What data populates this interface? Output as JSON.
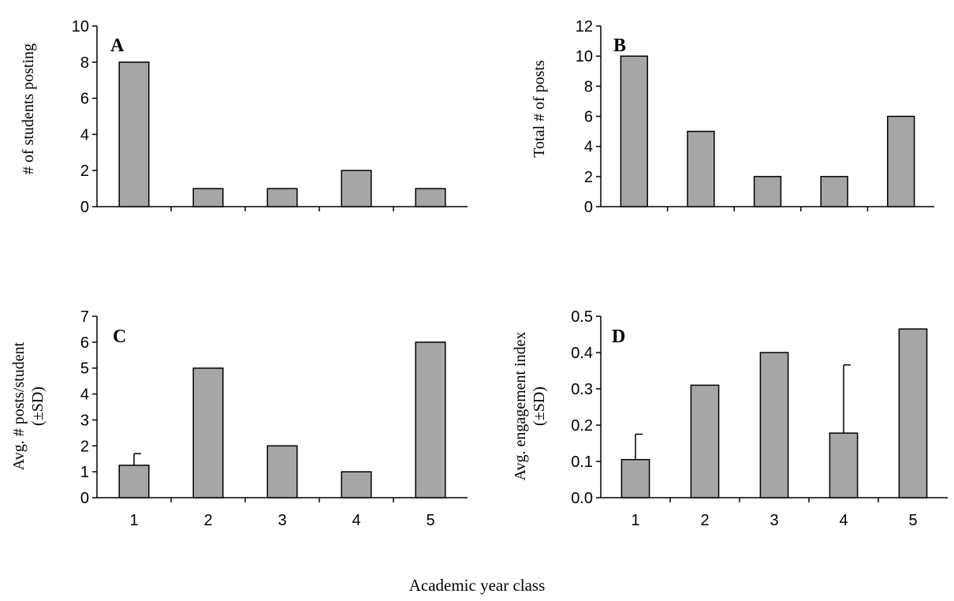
{
  "xtitle": "Academic year class",
  "chart_data": [
    {
      "type": "bar",
      "panel": "A",
      "ylabel": [
        "# of students posting"
      ],
      "categories": [
        "1",
        "2",
        "3",
        "4",
        "5"
      ],
      "show_xticklabels": false,
      "values": [
        8,
        1,
        1,
        2,
        1
      ],
      "errors": [
        null,
        null,
        null,
        null,
        null
      ],
      "ylim": [
        0,
        10
      ],
      "yticks": [
        "0",
        "2",
        "4",
        "6",
        "8",
        "10"
      ]
    },
    {
      "type": "bar",
      "panel": "B",
      "ylabel": [
        "Total # of posts"
      ],
      "categories": [
        "1",
        "2",
        "3",
        "4",
        "5"
      ],
      "show_xticklabels": false,
      "values": [
        10,
        5,
        2,
        2,
        6
      ],
      "errors": [
        null,
        null,
        null,
        null,
        null
      ],
      "ylim": [
        0,
        12
      ],
      "yticks": [
        "0",
        "2",
        "4",
        "6",
        "8",
        "10",
        "12"
      ]
    },
    {
      "type": "bar",
      "panel": "C",
      "ylabel": [
        "Avg. # posts/student",
        "(±SD)"
      ],
      "categories": [
        "1",
        "2",
        "3",
        "4",
        "5"
      ],
      "show_xticklabels": true,
      "values": [
        1.25,
        5,
        2,
        1,
        6
      ],
      "errors": [
        0.45,
        null,
        null,
        null,
        null
      ],
      "ylim": [
        0,
        7
      ],
      "yticks": [
        "0",
        "1",
        "2",
        "3",
        "4",
        "5",
        "6",
        "7"
      ]
    },
    {
      "type": "bar",
      "panel": "D",
      "ylabel": [
        "Avg. engagement index",
        "(±SD)"
      ],
      "categories": [
        "1",
        "2",
        "3",
        "4",
        "5"
      ],
      "show_xticklabels": true,
      "values": [
        0.105,
        0.31,
        0.4,
        0.178,
        0.465
      ],
      "errors": [
        0.07,
        null,
        null,
        0.188,
        null
      ],
      "ylim": [
        0,
        0.5
      ],
      "yticks": [
        "0.0",
        "0.1",
        "0.2",
        "0.3",
        "0.4",
        "0.5"
      ]
    }
  ]
}
